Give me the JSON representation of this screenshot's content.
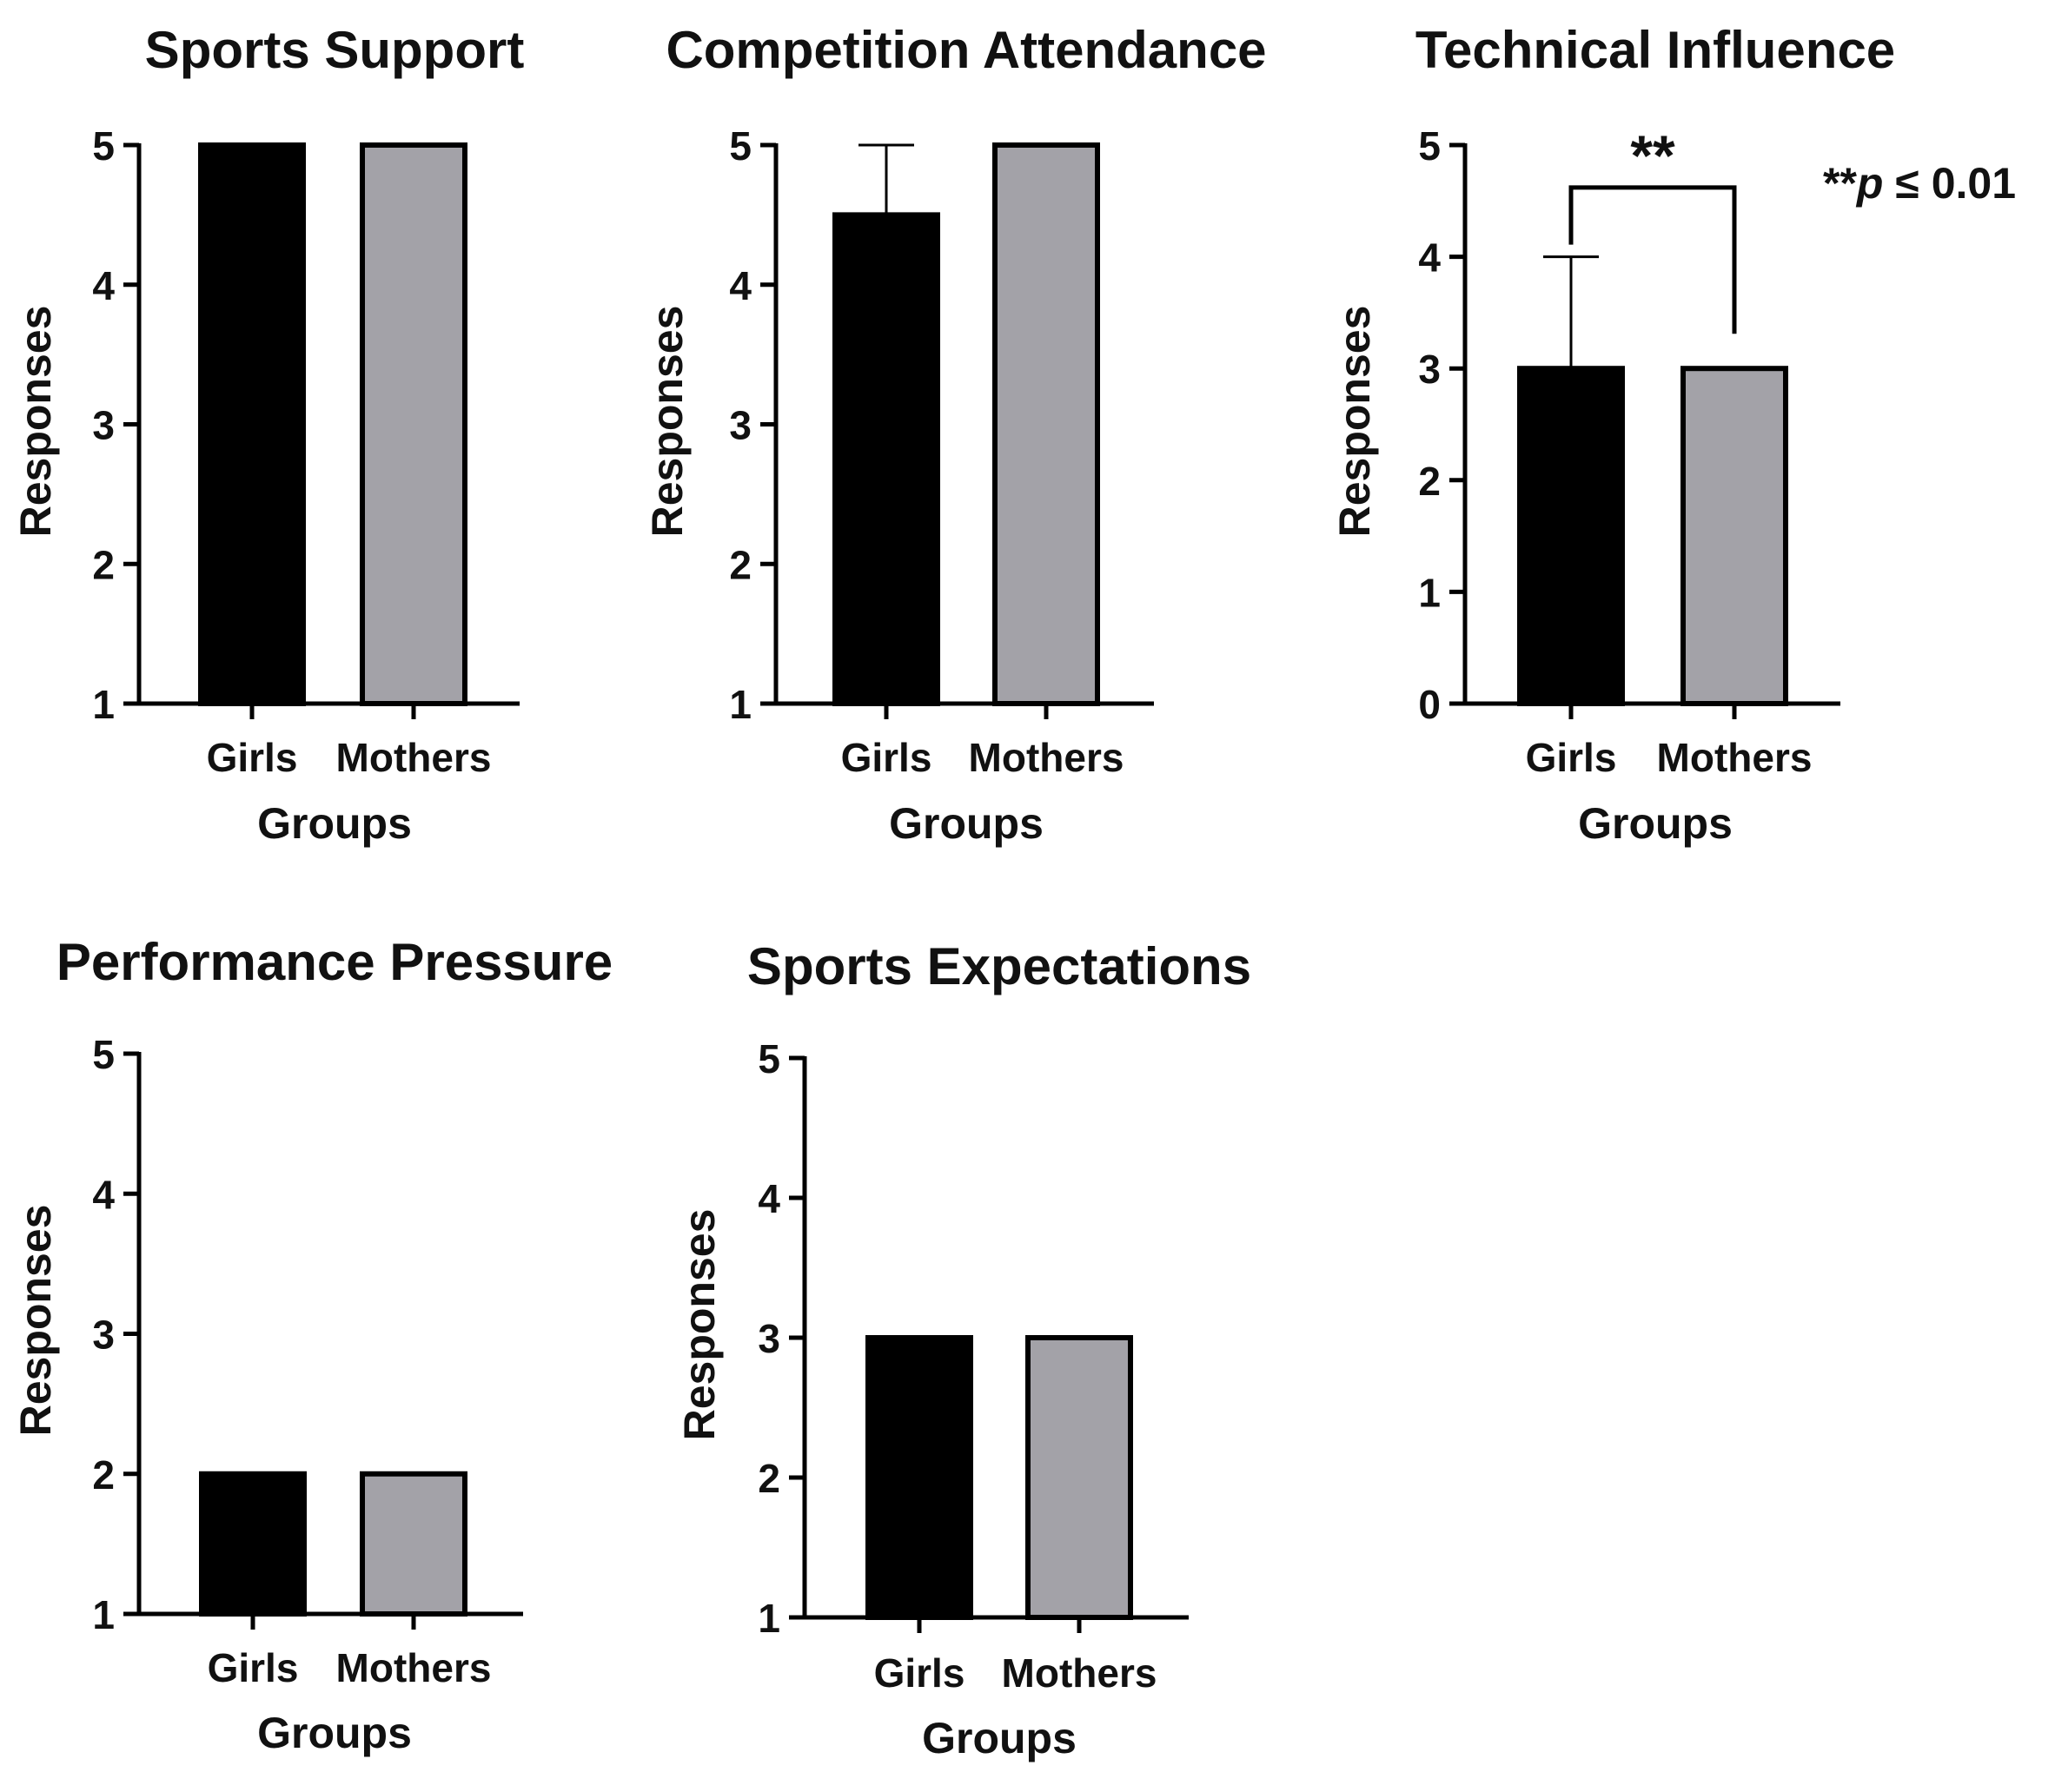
{
  "colors": {
    "girls": "#000000",
    "mothers": "#a3a2a8",
    "axis": "#000000",
    "text": "#111111"
  },
  "significance_note": {
    "stars": "**",
    "p_symbol": "p",
    "rest": " ≤ 0.01"
  },
  "chart_data": [
    {
      "type": "bar",
      "title": "Sports Support",
      "xlabel": "Groups",
      "ylabel": "Responses",
      "categories": [
        "Girls",
        "Mothers"
      ],
      "values": [
        5,
        5
      ],
      "error_upper": [
        0,
        0
      ],
      "ylim": [
        1,
        5
      ],
      "yticks": [
        "1",
        "2",
        "3",
        "4",
        "5"
      ],
      "significance": null
    },
    {
      "type": "bar",
      "title": "Competition Attendance",
      "xlabel": "Groups",
      "ylabel": "Responses",
      "categories": [
        "Girls",
        "Mothers"
      ],
      "values": [
        4.5,
        5
      ],
      "error_upper": [
        0.5,
        0
      ],
      "ylim": [
        1,
        5
      ],
      "yticks": [
        "1",
        "2",
        "3",
        "4",
        "5"
      ],
      "significance": null
    },
    {
      "type": "bar",
      "title": "Technical Influence",
      "xlabel": "Groups",
      "ylabel": "Responses",
      "categories": [
        "Girls",
        "Mothers"
      ],
      "values": [
        3,
        3
      ],
      "error_upper": [
        1,
        0
      ],
      "ylim": [
        0,
        5
      ],
      "yticks": [
        "0",
        "1",
        "2",
        "3",
        "4",
        "5"
      ],
      "significance": {
        "label": "**",
        "bracket_level": 4.62
      }
    },
    {
      "type": "bar",
      "title": "Performance Pressure",
      "xlabel": "Groups",
      "ylabel": "Responses",
      "categories": [
        "Girls",
        "Mothers"
      ],
      "values": [
        2,
        2
      ],
      "error_upper": [
        0,
        0
      ],
      "ylim": [
        1,
        5
      ],
      "yticks": [
        "1",
        "2",
        "3",
        "4",
        "5"
      ],
      "significance": null
    },
    {
      "type": "bar",
      "title": "Sports Expectations",
      "xlabel": "Groups",
      "ylabel": "Responses",
      "categories": [
        "Girls",
        "Mothers"
      ],
      "values": [
        3,
        3
      ],
      "error_upper": [
        0,
        0
      ],
      "ylim": [
        1,
        5
      ],
      "yticks": [
        "1",
        "2",
        "3",
        "4",
        "5"
      ],
      "significance": null
    }
  ]
}
